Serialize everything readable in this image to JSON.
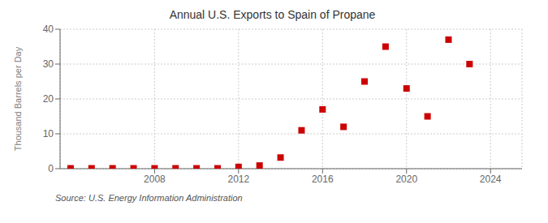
{
  "chart_data": {
    "type": "scatter",
    "title": "Annual U.S. Exports to Spain of Propane",
    "y_label": "Thousand Barrels per Day",
    "annotations": [
      "Source: U.S. Energy Information Administration"
    ],
    "x": [
      2004,
      2005,
      2006,
      2007,
      2008,
      2009,
      2010,
      2011,
      2012,
      2013,
      2014,
      2015,
      2016,
      2017,
      2018,
      2019,
      2020,
      2021,
      2022,
      2023
    ],
    "values": [
      0.1,
      0.1,
      0.1,
      0.1,
      0.1,
      0.1,
      0.1,
      0.1,
      0.5,
      0.9,
      3.2,
      11.0,
      17.0,
      12.0,
      25.0,
      35.0,
      23.0,
      15.0,
      37.0,
      30.0
    ],
    "color": "#cc0000",
    "marker": "square",
    "xlim": [
      2003.5,
      2025.5
    ],
    "ylim": [
      0,
      40
    ],
    "xticks": [
      2008,
      2012,
      2016,
      2020,
      2024
    ],
    "yticks": [
      0,
      10,
      20,
      30,
      40
    ],
    "grid": true
  }
}
